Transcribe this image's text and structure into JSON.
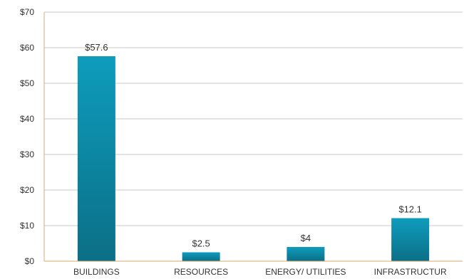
{
  "chart_data": {
    "type": "bar",
    "categories": [
      "BUILDINGS",
      "RESOURCES",
      "ENERGY/ UTILITIES",
      "INFRASTRUCTUR"
    ],
    "values": [
      57.6,
      2.5,
      4,
      12.1
    ],
    "data_labels": [
      "$57.6",
      "$2.5",
      "$4",
      "$12.1"
    ],
    "yticks": [
      0,
      10,
      20,
      30,
      40,
      50,
      60,
      70
    ],
    "ytick_labels": [
      "$0",
      "$10",
      "$20",
      "$30",
      "$40",
      "$50",
      "$60",
      "$70"
    ],
    "ylim": [
      0,
      70
    ],
    "title": "",
    "xlabel": "",
    "ylabel": "",
    "grid": true,
    "legend": "none"
  },
  "colors": {
    "bar_top": "#0e9cbd",
    "bar_bottom": "#0b6f86",
    "axis": "#d9a86c",
    "grid": "#c8c8c8"
  }
}
